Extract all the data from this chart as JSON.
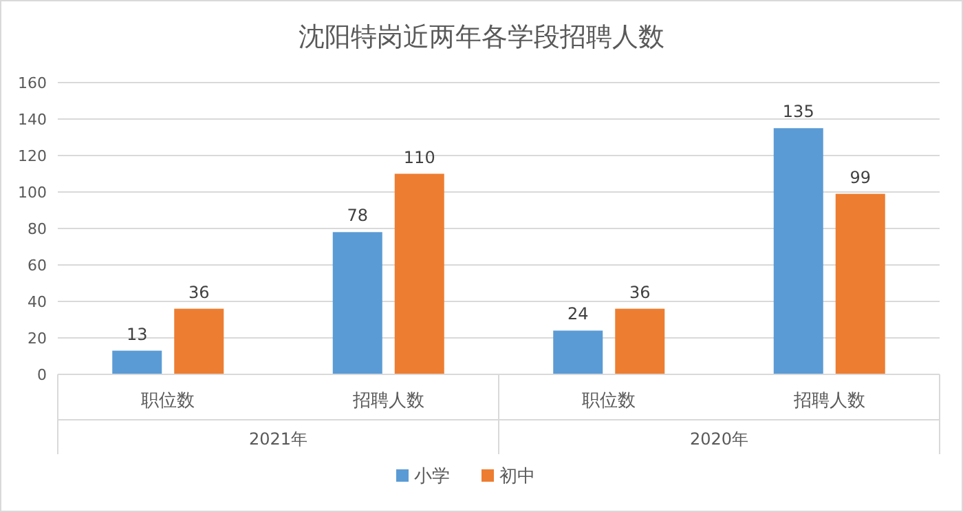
{
  "chart_data": {
    "type": "bar",
    "title": "沈阳特岗近两年各学段招聘人数",
    "categories": [
      "职位数",
      "招聘人数",
      "职位数",
      "招聘人数"
    ],
    "series": [
      {
        "name": "小学",
        "color": "#5b9bd5",
        "values": [
          13,
          78,
          24,
          135
        ]
      },
      {
        "name": "初中",
        "color": "#ed7d31",
        "values": [
          36,
          110,
          36,
          99
        ]
      }
    ],
    "annotations": [
      "2021年",
      "2020年"
    ],
    "ylim": [
      0,
      160
    ],
    "yticks": [
      0,
      20,
      40,
      60,
      80,
      100,
      120,
      140,
      160
    ],
    "grid": "y",
    "legend": "bottom",
    "data_labels": true
  }
}
